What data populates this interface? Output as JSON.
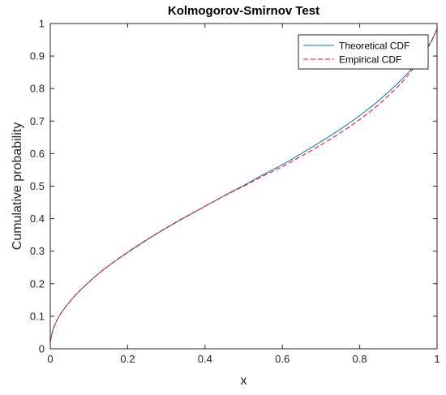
{
  "chart_data": {
    "type": "line",
    "title": "Kolmogorov-Smirnov Test",
    "xlabel": "x",
    "ylabel": "Cumulative probability",
    "xlim": [
      0,
      1
    ],
    "ylim": [
      0,
      1
    ],
    "xticks": [
      0,
      0.2,
      0.4,
      0.6,
      0.8,
      1
    ],
    "xtick_labels": [
      "0",
      "0.2",
      "0.4",
      "0.6",
      "0.8",
      "1"
    ],
    "yticks": [
      0,
      0.1,
      0.2,
      0.3,
      0.4,
      0.5,
      0.6,
      0.7,
      0.8,
      0.9,
      1
    ],
    "ytick_labels": [
      "0",
      "0.1",
      "0.2",
      "0.3",
      "0.4",
      "0.5",
      "0.6",
      "0.7",
      "0.8",
      "0.9",
      "1"
    ],
    "grid": false,
    "legend_position": "top-right",
    "series": [
      {
        "name": "Theoretical CDF",
        "color": "#0072BD",
        "style": "solid",
        "x": [
          0,
          0.005,
          0.01,
          0.02,
          0.03,
          0.05,
          0.07,
          0.1,
          0.13,
          0.16,
          0.2,
          0.25,
          0.3,
          0.35,
          0.4,
          0.45,
          0.5,
          0.55,
          0.6,
          0.65,
          0.7,
          0.75,
          0.8,
          0.85,
          0.9,
          0.93,
          0.95,
          0.97,
          0.98,
          0.99,
          1
        ],
        "y": [
          0.02,
          0.05,
          0.068,
          0.094,
          0.113,
          0.144,
          0.171,
          0.205,
          0.236,
          0.263,
          0.296,
          0.335,
          0.371,
          0.405,
          0.438,
          0.471,
          0.502,
          0.535,
          0.566,
          0.601,
          0.637,
          0.675,
          0.717,
          0.764,
          0.818,
          0.856,
          0.885,
          0.917,
          0.936,
          0.957,
          0.985
        ]
      },
      {
        "name": "Empirical CDF",
        "color": "#FF0000",
        "style": "dashed",
        "x": [
          0,
          0.005,
          0.01,
          0.02,
          0.03,
          0.05,
          0.07,
          0.1,
          0.13,
          0.16,
          0.2,
          0.25,
          0.3,
          0.35,
          0.4,
          0.45,
          0.5,
          0.55,
          0.6,
          0.65,
          0.7,
          0.75,
          0.8,
          0.85,
          0.9,
          0.93,
          0.95,
          0.97,
          0.98,
          0.99,
          1
        ],
        "y": [
          0.02,
          0.05,
          0.068,
          0.094,
          0.113,
          0.144,
          0.171,
          0.205,
          0.236,
          0.263,
          0.297,
          0.336,
          0.372,
          0.406,
          0.438,
          0.47,
          0.5,
          0.531,
          0.56,
          0.593,
          0.627,
          0.664,
          0.705,
          0.752,
          0.808,
          0.849,
          0.88,
          0.914,
          0.934,
          0.956,
          0.985
        ]
      }
    ]
  }
}
